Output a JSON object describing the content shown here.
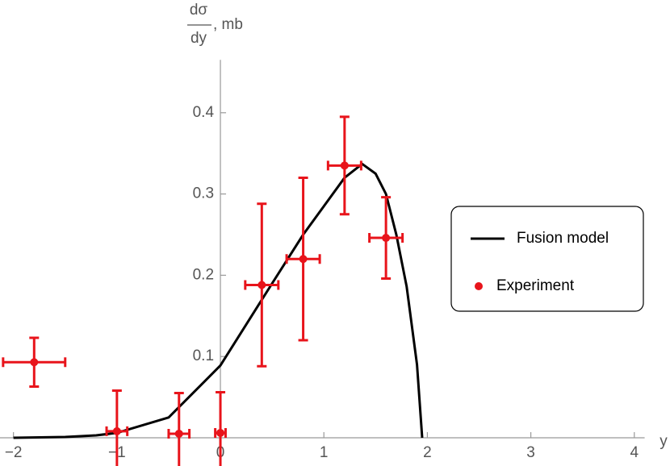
{
  "chart_data": {
    "type": "line",
    "ylabel": {
      "numerator": "dσ",
      "denominator": "dy",
      "unit": ", mb"
    },
    "xlabel": "y",
    "xlim": [
      -2.13,
      4.1
    ],
    "ylim": [
      0,
      0.465
    ],
    "xticks": [
      {
        "value": -2,
        "label": "−2"
      },
      {
        "value": -1,
        "label": "−1"
      },
      0,
      1,
      2,
      3,
      4
    ],
    "yticks": [
      0.1,
      0.2,
      0.3,
      0.4
    ],
    "legend": "right",
    "series": [
      {
        "name": "Fusion model",
        "type": "line",
        "color": "#000000",
        "x": [
          -2,
          -1.5,
          -1.2,
          -1,
          -0.5,
          0,
          0.5,
          0.8,
          1,
          1.2,
          1.37,
          1.5,
          1.6,
          1.7,
          1.8,
          1.9,
          1.95
        ],
        "values": [
          0,
          0.001,
          0.003,
          0.006,
          0.025,
          0.089,
          0.19,
          0.25,
          0.285,
          0.32,
          0.337,
          0.325,
          0.3,
          0.25,
          0.186,
          0.09,
          0
        ]
      },
      {
        "name": "Experiment",
        "type": "errorbar",
        "color": "#e8141b",
        "x": [
          -1.8,
          -1.0,
          -0.4,
          0,
          0.4,
          0.8,
          1.2,
          1.6
        ],
        "values": [
          0.093,
          0.008,
          0.005,
          0.006,
          0.188,
          0.22,
          0.335,
          0.246
        ],
        "xerr": [
          0.3,
          0.1,
          0.1,
          0.05,
          0.16,
          0.16,
          0.16,
          0.16
        ],
        "yerr": [
          0.03,
          0.05,
          0.05,
          0.05,
          0.1,
          0.1,
          0.06,
          0.05
        ]
      }
    ]
  }
}
